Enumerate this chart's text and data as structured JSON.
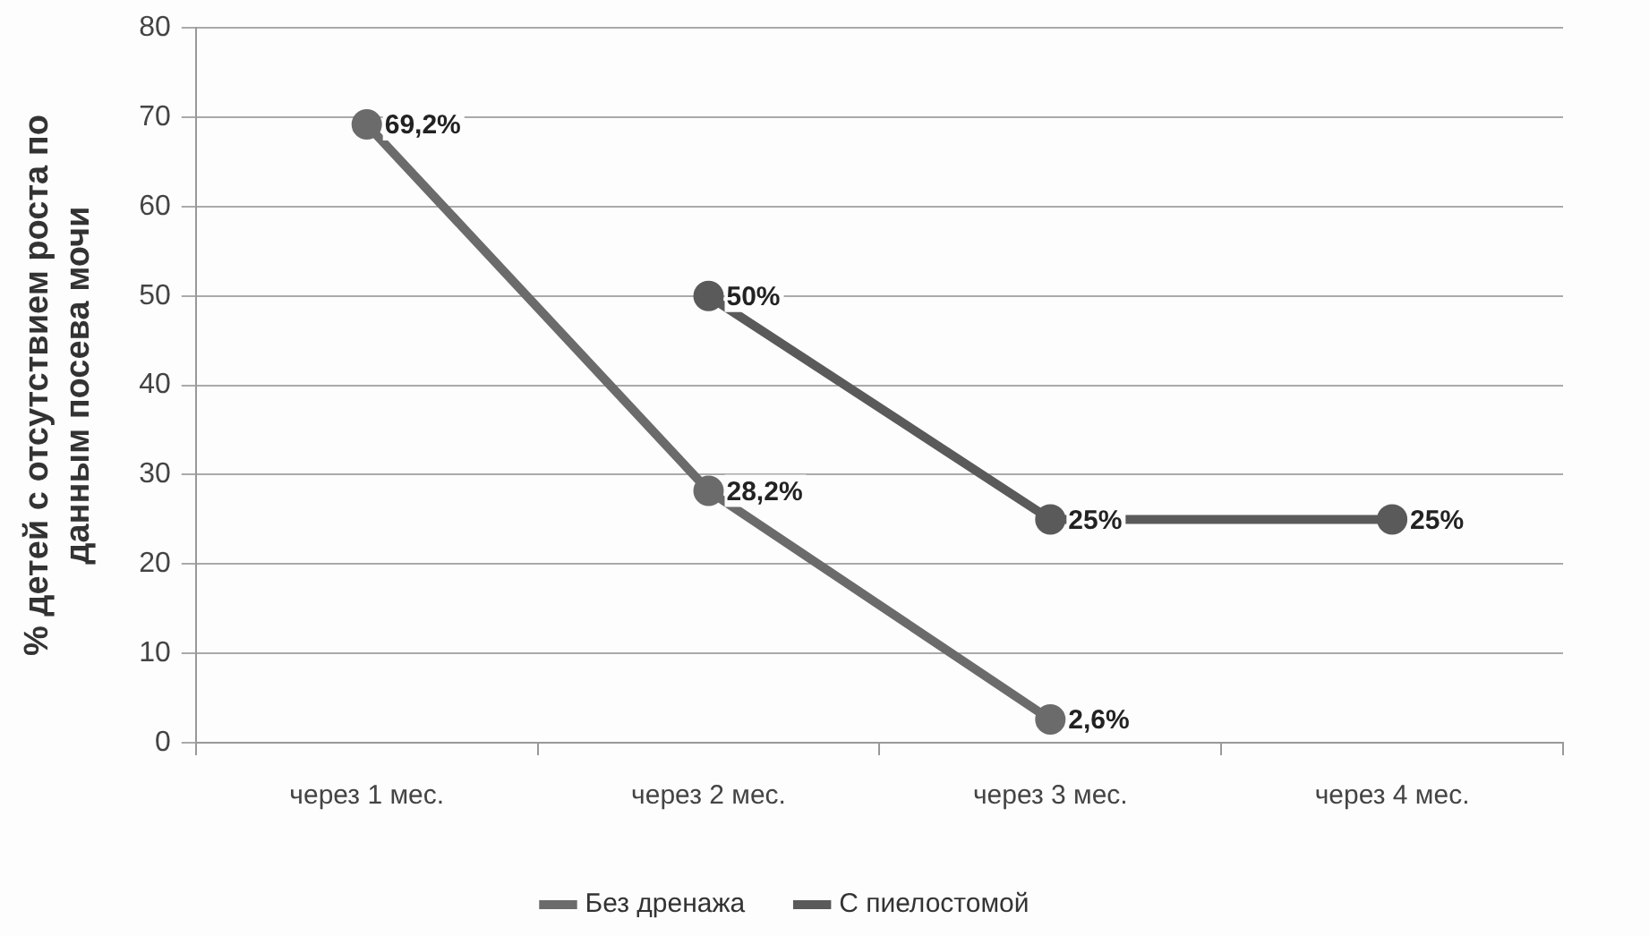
{
  "chart_data": {
    "type": "line",
    "ylabel": "% детей с отсутствием роста по данным посева мочи",
    "categories": [
      "через 1 мес.",
      "через 2 мес.",
      "через 3 мес.",
      "через 4 мес."
    ],
    "series": [
      {
        "name": "Без дренажа",
        "color": "#6b6b6b",
        "values": [
          69.2,
          28.2,
          2.6,
          null
        ],
        "value_labels": [
          "69,2%",
          "28,2%",
          "2,6%",
          null
        ]
      },
      {
        "name": "С пиелостомой",
        "color": "#5a5a5a",
        "values": [
          null,
          50,
          25,
          25
        ],
        "value_labels": [
          null,
          "50%",
          "25%",
          "25%"
        ]
      }
    ],
    "ylim": [
      0,
      80
    ],
    "yticks": [
      0,
      10,
      20,
      30,
      40,
      50,
      60,
      70,
      80
    ],
    "grid": "y",
    "legend": "bottom",
    "marker": "circle",
    "line_style": "solid"
  }
}
